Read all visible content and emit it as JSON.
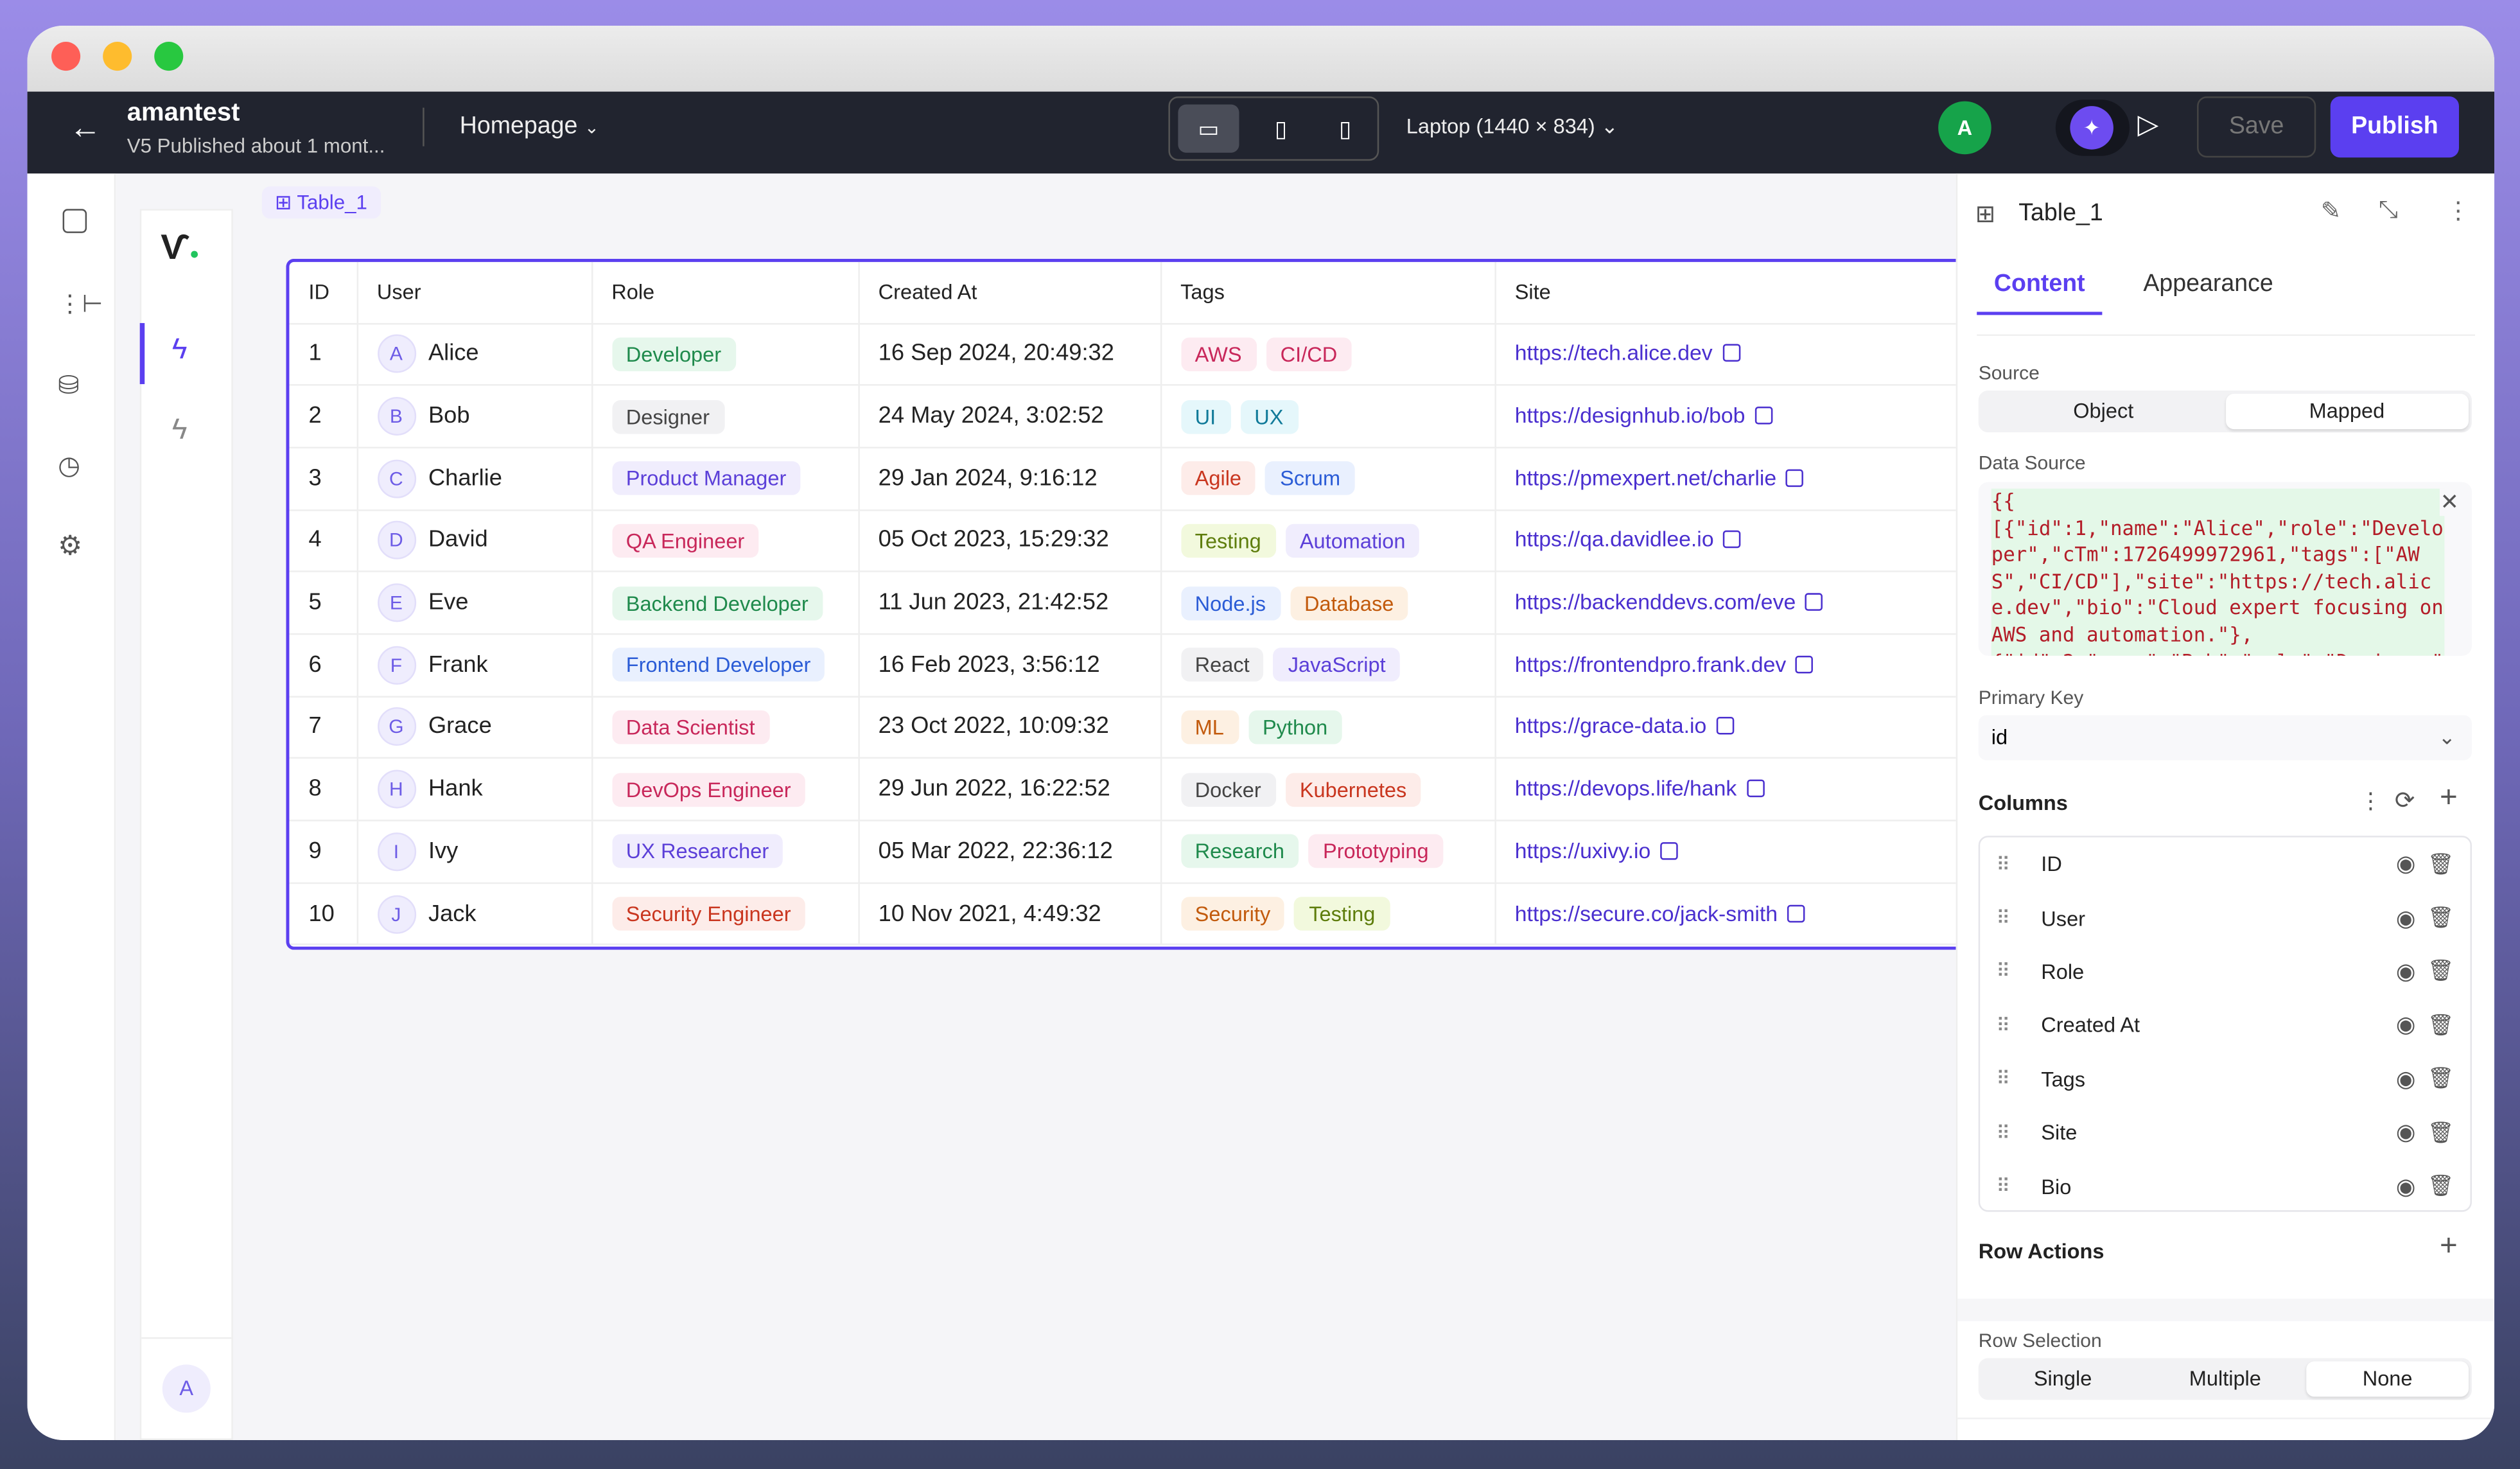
{
  "window": {
    "controls": [
      "close",
      "minimize",
      "maximize"
    ]
  },
  "topbar": {
    "app_name": "amantest",
    "status": "V5 Published about 1 mont...",
    "page": "Homepage",
    "device": "Laptop (1440 × 834)",
    "avatar": "A",
    "save": "Save",
    "publish": "Publish"
  },
  "canvas": {
    "selected_label": "Table_1",
    "user_avatar": "A"
  },
  "table": {
    "headers": [
      "ID",
      "User",
      "Role",
      "Created At",
      "Tags",
      "Site"
    ],
    "rows": [
      {
        "id": "1",
        "initial": "A",
        "user": "Alice",
        "role": "Developer",
        "role_color": "green",
        "created": "16 Sep 2024, 20:49:32",
        "tags": [
          {
            "t": "AWS",
            "c": "pink"
          },
          {
            "t": "CI/CD",
            "c": "pink"
          }
        ],
        "site": "https://tech.alice.dev"
      },
      {
        "id": "2",
        "initial": "B",
        "user": "Bob",
        "role": "Designer",
        "role_color": "gray",
        "created": "24 May 2024, 3:02:52",
        "tags": [
          {
            "t": "UI",
            "c": "cyan"
          },
          {
            "t": "UX",
            "c": "cyan"
          }
        ],
        "site": "https://designhub.io/bob"
      },
      {
        "id": "3",
        "initial": "C",
        "user": "Charlie",
        "role": "Product Manager",
        "role_color": "purple",
        "created": "29 Jan 2024, 9:16:12",
        "tags": [
          {
            "t": "Agile",
            "c": "red"
          },
          {
            "t": "Scrum",
            "c": "blue"
          }
        ],
        "site": "https://pmexpert.net/charlie"
      },
      {
        "id": "4",
        "initial": "D",
        "user": "David",
        "role": "QA Engineer",
        "role_color": "pink",
        "created": "05 Oct 2023, 15:29:32",
        "tags": [
          {
            "t": "Testing",
            "c": "lime"
          },
          {
            "t": "Automation",
            "c": "purple"
          }
        ],
        "site": "https://qa.davidlee.io"
      },
      {
        "id": "5",
        "initial": "E",
        "user": "Eve",
        "role": "Backend Developer",
        "role_color": "green",
        "created": "11 Jun 2023, 21:42:52",
        "tags": [
          {
            "t": "Node.js",
            "c": "blue"
          },
          {
            "t": "Database",
            "c": "orange"
          }
        ],
        "site": "https://backenddevs.com/eve"
      },
      {
        "id": "6",
        "initial": "F",
        "user": "Frank",
        "role": "Frontend Developer",
        "role_color": "blue",
        "created": "16 Feb 2023, 3:56:12",
        "tags": [
          {
            "t": "React",
            "c": "gray"
          },
          {
            "t": "JavaScript",
            "c": "purple"
          }
        ],
        "site": "https://frontendpro.frank.dev"
      },
      {
        "id": "7",
        "initial": "G",
        "user": "Grace",
        "role": "Data Scientist",
        "role_color": "pink",
        "created": "23 Oct 2022, 10:09:32",
        "tags": [
          {
            "t": "ML",
            "c": "orange"
          },
          {
            "t": "Python",
            "c": "green"
          }
        ],
        "site": "https://grace-data.io"
      },
      {
        "id": "8",
        "initial": "H",
        "user": "Hank",
        "role": "DevOps Engineer",
        "role_color": "pink",
        "created": "29 Jun 2022, 16:22:52",
        "tags": [
          {
            "t": "Docker",
            "c": "gray"
          },
          {
            "t": "Kubernetes",
            "c": "red"
          }
        ],
        "site": "https://devops.life/hank"
      },
      {
        "id": "9",
        "initial": "I",
        "user": "Ivy",
        "role": "UX Researcher",
        "role_color": "purple",
        "created": "05 Mar 2022, 22:36:12",
        "tags": [
          {
            "t": "Research",
            "c": "green"
          },
          {
            "t": "Prototyping",
            "c": "pink"
          }
        ],
        "site": "https://uxivy.io"
      },
      {
        "id": "10",
        "initial": "J",
        "user": "Jack",
        "role": "Security Engineer",
        "role_color": "red",
        "created": "10 Nov 2021, 4:49:32",
        "tags": [
          {
            "t": "Security",
            "c": "orange"
          },
          {
            "t": "Testing",
            "c": "lime"
          }
        ],
        "site": "https://secure.co/jack-smith"
      }
    ]
  },
  "panel": {
    "title": "Table_1",
    "tabs": [
      "Content",
      "Appearance"
    ],
    "active_tab": "Content",
    "source_label": "Source",
    "source_options": [
      "Object",
      "Mapped"
    ],
    "source_selected": "Mapped",
    "data_source_label": "Data Source",
    "data_source_code": "{{ \n[{\"id\":1,\"name\":\"Alice\",\"role\":\"Developer\",\"cTm\":1726499972961,\"tags\":[\"AWS\",\"CI/CD\"],\"site\":\"https://tech.alice.dev\",\"bio\":\"Cloud expert focusing on AWS and automation.\"},\n{\"id\":2,\"name\":\"Bob\",\"role\":\"Designer\"",
    "primary_key_label": "Primary Key",
    "primary_key": "id",
    "columns_label": "Columns",
    "columns": [
      "ID",
      "User",
      "Role",
      "Created At",
      "Tags",
      "Site",
      "Bio"
    ],
    "row_actions_label": "Row Actions",
    "row_selection_label": "Row Selection",
    "row_selection_options": [
      "Single",
      "Multiple",
      "None"
    ],
    "row_selection_selected": "None"
  },
  "colors": {
    "accent": "#5b3ff0",
    "topbar": "#21242f",
    "green": [
      "#e6f7ec",
      "#1f8a4c"
    ],
    "gray": [
      "#f1f1f3",
      "#444"
    ],
    "purple": [
      "#f0edfd",
      "#5b3fd8"
    ],
    "pink": [
      "#fdebf1",
      "#c8275a"
    ],
    "red": [
      "#fdece9",
      "#c9361f"
    ],
    "blue": [
      "#e9f0fe",
      "#2b5cd6"
    ],
    "cyan": [
      "#e5f7fb",
      "#107a99"
    ],
    "lime": [
      "#f2f9dd",
      "#5e7d0c"
    ],
    "orange": [
      "#fdf0e2",
      "#c25a0c"
    ]
  }
}
